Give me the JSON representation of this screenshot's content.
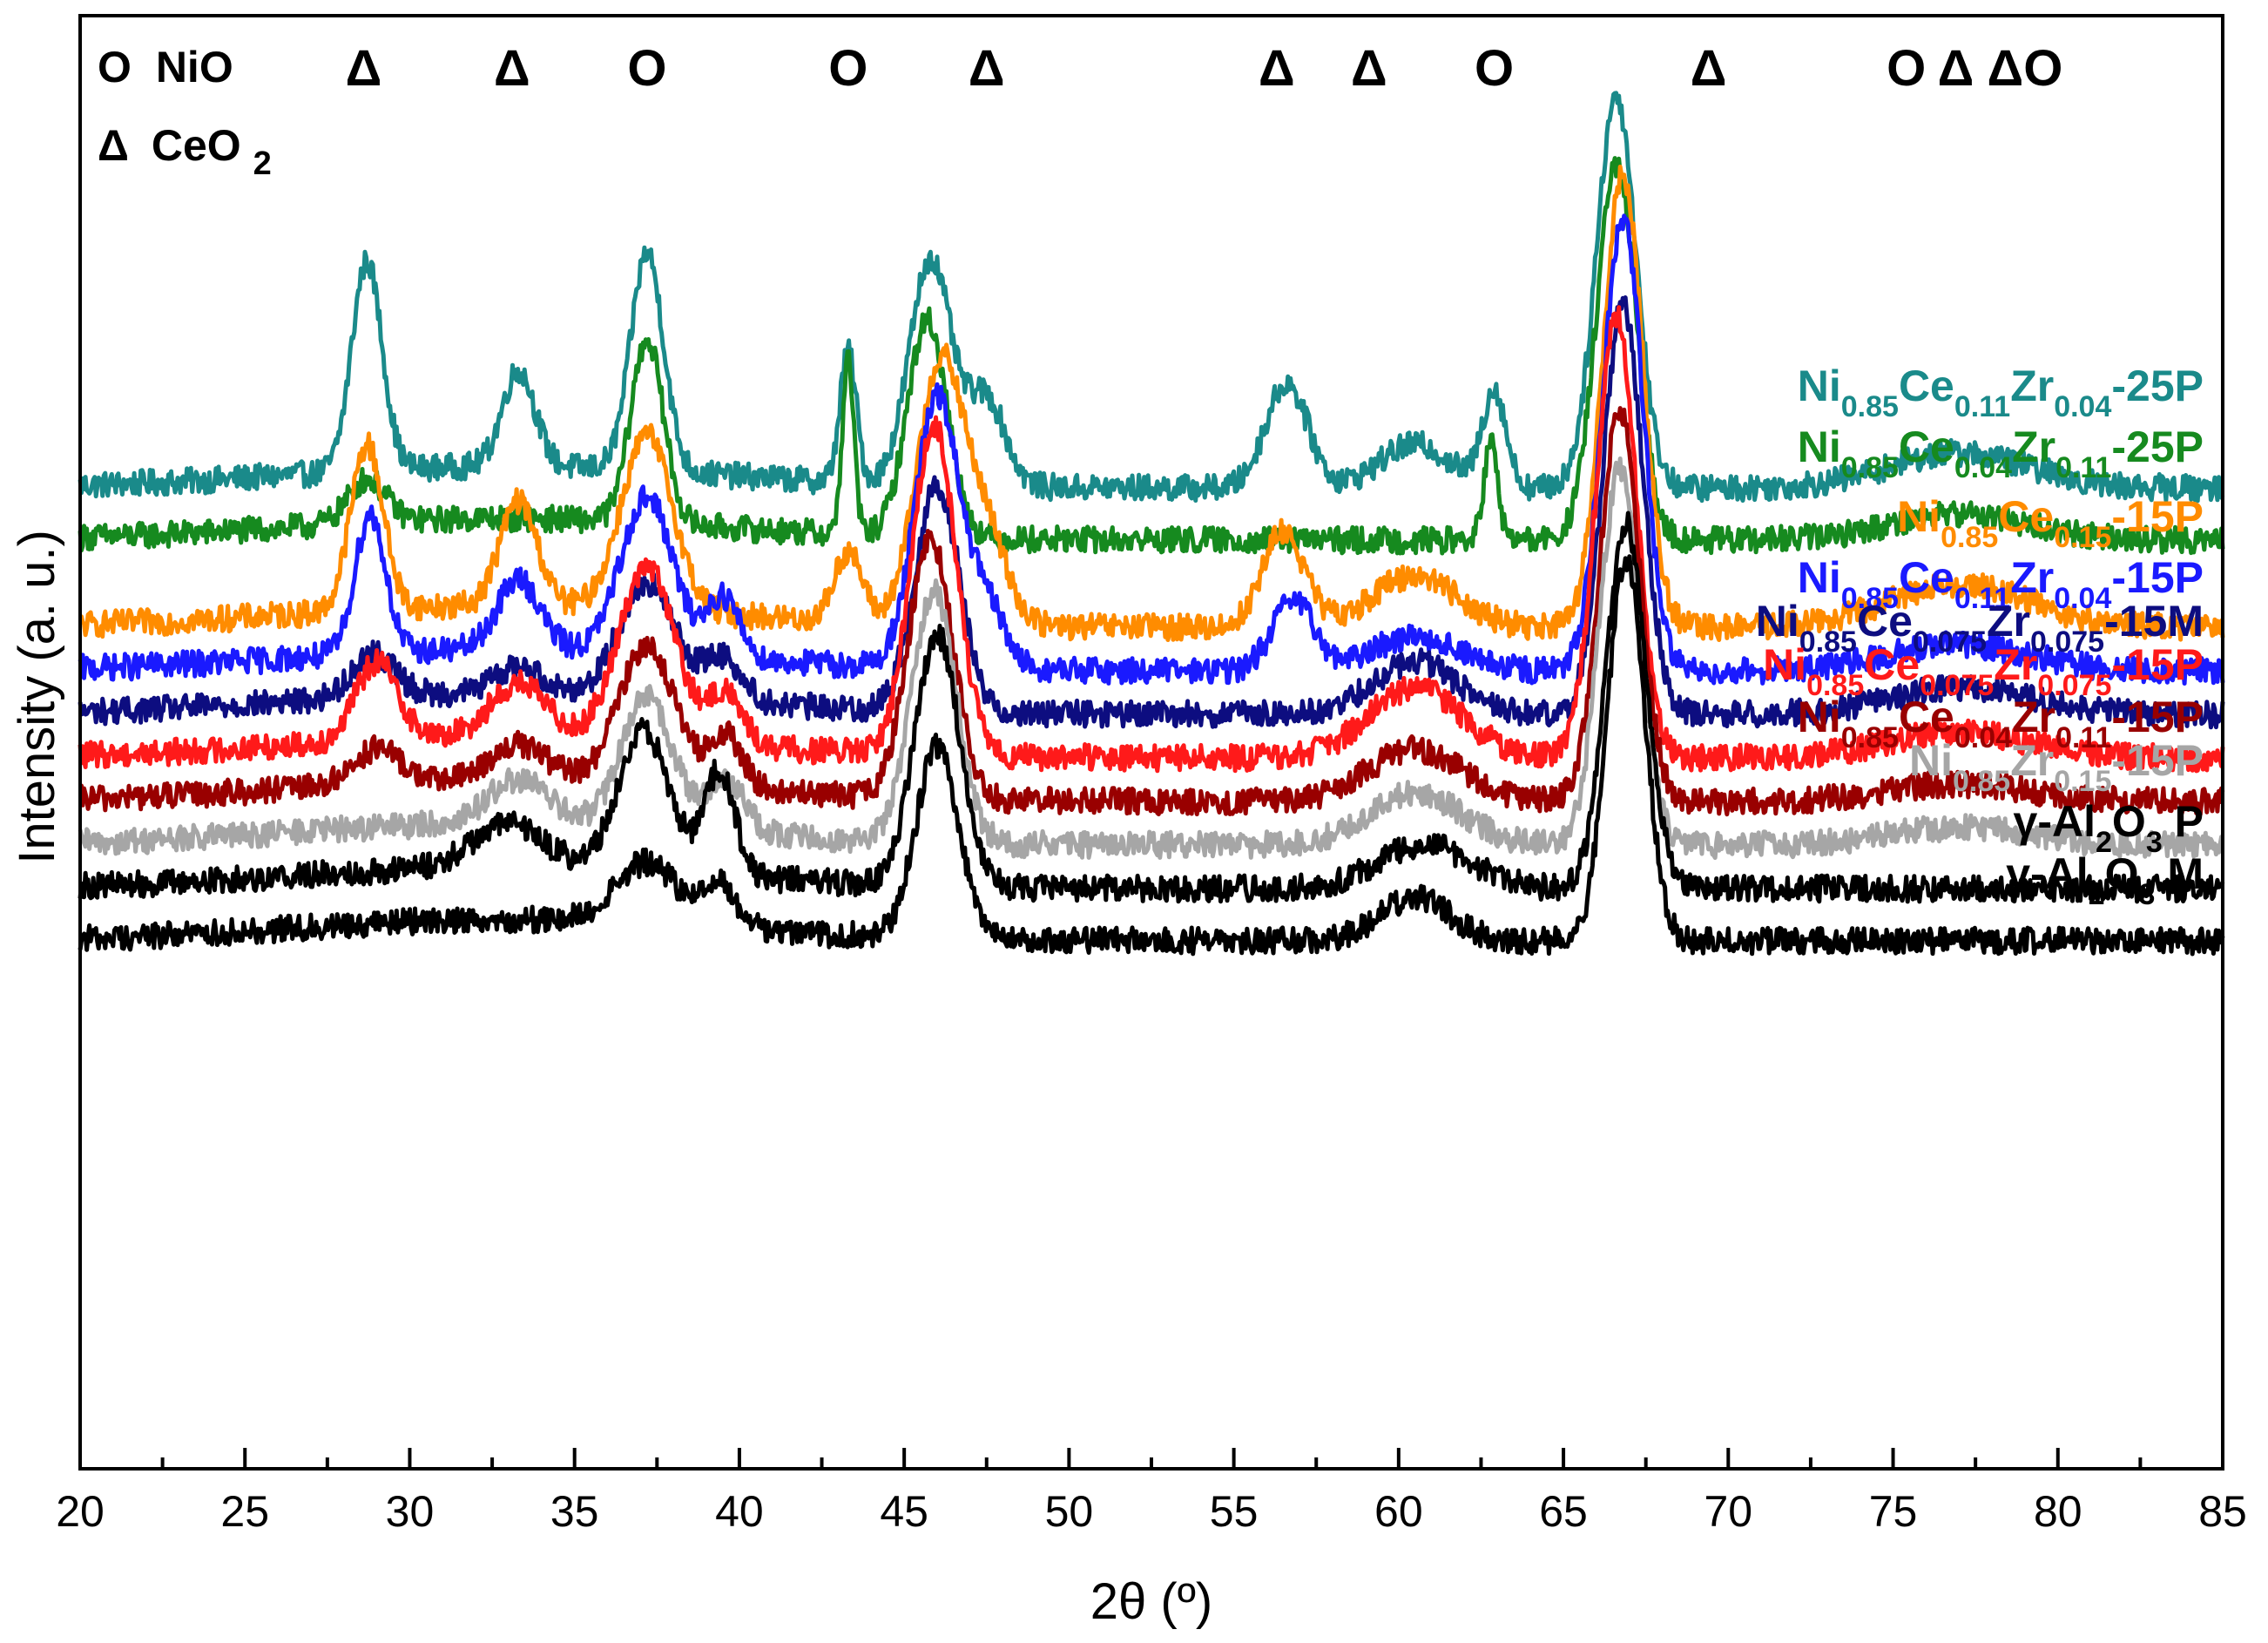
{
  "chart_data": {
    "type": "line",
    "title": "",
    "xlabel": "2θ (º)",
    "ylabel": "Intensity (a. u.)",
    "xlim": [
      20,
      85
    ],
    "x_ticks": [
      20,
      25,
      30,
      35,
      40,
      45,
      50,
      55,
      60,
      65,
      70,
      75,
      80,
      85
    ],
    "x_tick_labels": [
      "20",
      "25",
      "30",
      "35",
      "40",
      "45",
      "50",
      "55",
      "60",
      "65",
      "70",
      "75",
      "80",
      "85"
    ],
    "y_ticks_shown": false,
    "legend": {
      "placement": "top-left",
      "entries": [
        {
          "symbol": "O",
          "label": "NiO"
        },
        {
          "symbol": "Δ",
          "label": "CeO",
          "sub": "2"
        }
      ]
    },
    "peak_markers": [
      {
        "x": 28.6,
        "symbol": "Δ"
      },
      {
        "x": 33.1,
        "symbol": "Δ"
      },
      {
        "x": 37.2,
        "symbol": "O"
      },
      {
        "x": 43.3,
        "symbol": "O"
      },
      {
        "x": 47.5,
        "symbol": "Δ"
      },
      {
        "x": 56.3,
        "symbol": "Δ"
      },
      {
        "x": 59.1,
        "symbol": "Δ"
      },
      {
        "x": 62.9,
        "symbol": "O"
      },
      {
        "x": 69.4,
        "symbol": "Δ"
      },
      {
        "x": 75.4,
        "symbol": "O"
      },
      {
        "x": 76.9,
        "symbol": "Δ"
      },
      {
        "x": 79.0,
        "symbol": "ΔO"
      }
    ],
    "series": [
      {
        "name": "Ni0.85Ce0.11Zr0.04-25P",
        "label_parts": [
          [
            "Ni",
            ""
          ],
          [
            "0.85",
            "sub"
          ],
          [
            "Ce",
            ""
          ],
          [
            "0.11",
            "sub"
          ],
          [
            "Zr",
            ""
          ],
          [
            "0.04",
            "sub"
          ],
          [
            "-25P",
            ""
          ]
        ],
        "color": "#1a8a8a",
        "offset": 2.0,
        "peaks": [
          [
            28.7,
            2.4,
            0.65
          ],
          [
            33.3,
            1.1,
            0.7
          ],
          [
            37.2,
            2.5,
            0.7
          ],
          [
            43.3,
            1.5,
            0.35
          ],
          [
            45.8,
            2.6,
            0.9
          ],
          [
            47.5,
            1.0,
            0.8
          ],
          [
            56.6,
            1.2,
            0.9
          ],
          [
            60.5,
            0.5,
            1.5
          ],
          [
            62.9,
            1.1,
            0.5
          ],
          [
            66.6,
            4.5,
            0.85
          ],
          [
            77,
            0.4,
            3
          ]
        ]
      },
      {
        "name": "Ni0.85Ce0.04Zr0.11-25P",
        "label_parts": [
          [
            "Ni",
            ""
          ],
          [
            "0.85",
            "sub"
          ],
          [
            "Ce",
            ""
          ],
          [
            "0.04",
            "sub"
          ],
          [
            "Zr",
            ""
          ],
          [
            "0.11",
            "sub"
          ],
          [
            "-25P",
            ""
          ]
        ],
        "color": "#168a1f",
        "offset": 1.4,
        "peaks": [
          [
            28.7,
            0.5,
            0.8
          ],
          [
            37.2,
            2.1,
            0.7
          ],
          [
            43.3,
            2.0,
            0.25
          ],
          [
            45.7,
            2.5,
            0.85
          ],
          [
            62.8,
            1.1,
            0.3
          ],
          [
            66.6,
            4.3,
            0.85
          ],
          [
            77,
            0.3,
            3
          ]
        ]
      },
      {
        "name": "Ni0.85Ce0.15-15P",
        "label_parts": [
          [
            "Ni",
            ""
          ],
          [
            "0.85",
            "sub"
          ],
          [
            "Ce",
            ""
          ],
          [
            "0.15",
            "sub"
          ],
          [
            "-15P",
            ""
          ]
        ],
        "color": "#ff8c00",
        "offset": 0.4,
        "peaks": [
          [
            28.7,
            1.9,
            0.7
          ],
          [
            33.3,
            1.2,
            0.8
          ],
          [
            37.2,
            2.0,
            1.1
          ],
          [
            43.3,
            0.8,
            0.6
          ],
          [
            46.1,
            3.0,
            1.0
          ],
          [
            47.5,
            1.0,
            0.9
          ],
          [
            56.5,
            1.1,
            0.9
          ],
          [
            60.5,
            0.6,
            1.8
          ],
          [
            66.8,
            5.2,
            0.85
          ],
          [
            77,
            0.5,
            3
          ]
        ]
      },
      {
        "name": "Ni0.85Ce0.11Zr0.04-15P",
        "label_parts": [
          [
            "Ni",
            ""
          ],
          [
            "0.85",
            "sub"
          ],
          [
            "Ce",
            ""
          ],
          [
            "0.11",
            "sub"
          ],
          [
            "Zr",
            ""
          ],
          [
            "0.04",
            "sub"
          ],
          [
            "-15P",
            ""
          ]
        ],
        "color": "#1a1aff",
        "offset": -0.1,
        "peaks": [
          [
            28.8,
            1.6,
            0.65
          ],
          [
            33.3,
            0.8,
            0.9
          ],
          [
            37.2,
            1.8,
            1.1
          ],
          [
            39.5,
            0.7,
            0.7
          ],
          [
            46.0,
            3.1,
            0.95
          ],
          [
            47.5,
            0.7,
            0.8
          ],
          [
            56.8,
            0.8,
            0.9
          ],
          [
            60.5,
            0.4,
            1.8
          ],
          [
            66.8,
            5.2,
            0.85
          ],
          [
            77,
            0.3,
            3
          ]
        ]
      },
      {
        "name": "Ni0.85Ce0.075Zr0.075-15M",
        "label_parts": [
          [
            "Ni",
            ""
          ],
          [
            "0.85",
            "sub"
          ],
          [
            "Ce",
            ""
          ],
          [
            "0.075",
            "sub"
          ],
          [
            "Zr",
            ""
          ],
          [
            "0.075",
            "sub"
          ],
          [
            "-15M",
            ""
          ]
        ],
        "color": "#0d0d80",
        "offset": -0.6,
        "peaks": [
          [
            28.9,
            0.5,
            0.9
          ],
          [
            33.3,
            0.3,
            1.0
          ],
          [
            37.2,
            1.3,
            1.2
          ],
          [
            39.5,
            0.5,
            0.8
          ],
          [
            46.0,
            2.6,
            0.95
          ],
          [
            60.5,
            0.6,
            1.8
          ],
          [
            66.8,
            4.7,
            0.85
          ],
          [
            77,
            0.3,
            3
          ]
        ]
      },
      {
        "name": "Ni0.85Ce0.075Zr0.075-15P",
        "label_parts": [
          [
            "Ni",
            ""
          ],
          [
            "0.85",
            "sub"
          ],
          [
            "Ce",
            ""
          ],
          [
            "0.075",
            "sub"
          ],
          [
            "Zr",
            ""
          ],
          [
            "0.075",
            "sub"
          ],
          [
            "-15P",
            ""
          ]
        ],
        "color": "#ff1a1a",
        "offset": -1.1,
        "peaks": [
          [
            29.0,
            0.9,
            0.9
          ],
          [
            33.3,
            0.6,
            1.2
          ],
          [
            37.2,
            2.0,
            1.2
          ],
          [
            39.6,
            0.6,
            0.7
          ],
          [
            45.9,
            3.8,
            0.95
          ],
          [
            60.5,
            0.8,
            2.0
          ],
          [
            66.6,
            5.1,
            0.85
          ],
          [
            77,
            0.3,
            3
          ]
        ]
      },
      {
        "name": "Ni0.85Ce0.04Zr0.11-15P",
        "label_parts": [
          [
            "Ni",
            ""
          ],
          [
            "0.85",
            "sub"
          ],
          [
            "Ce",
            ""
          ],
          [
            "0.04",
            "sub"
          ],
          [
            "Zr",
            ""
          ],
          [
            "0.11",
            "sub"
          ],
          [
            "-15P",
            ""
          ]
        ],
        "color": "#990000",
        "offset": -1.6,
        "peaks": [
          [
            29.0,
            0.4,
            1.0
          ],
          [
            33.3,
            0.4,
            1.2
          ],
          [
            37.2,
            1.6,
            1.2
          ],
          [
            39.6,
            0.6,
            0.7
          ],
          [
            45.8,
            3.0,
            0.95
          ],
          [
            60.5,
            0.6,
            2.0
          ],
          [
            66.7,
            4.5,
            0.85
          ],
          [
            77,
            0.2,
            3
          ]
        ]
      },
      {
        "name": "Ni0.85Zr0.15-15P",
        "label_parts": [
          [
            "Ni",
            ""
          ],
          [
            "0.85",
            "sub"
          ],
          [
            "Zr",
            ""
          ],
          [
            "0.15",
            "sub"
          ],
          [
            "-15P",
            ""
          ]
        ],
        "color": "#a6a6a6",
        "offset": -2.1,
        "peaks": [
          [
            33.3,
            0.5,
            1.3
          ],
          [
            37.2,
            1.5,
            1.1
          ],
          [
            39.6,
            0.6,
            0.8
          ],
          [
            45.9,
            2.9,
            0.95
          ],
          [
            60.5,
            0.6,
            2.0
          ],
          [
            66.7,
            4.3,
            0.85
          ],
          [
            77,
            0.2,
            3
          ]
        ]
      },
      {
        "name": "γ-Al2O3 P",
        "label_parts": [
          [
            "γ-Al",
            ""
          ],
          [
            "2",
            "sub"
          ],
          [
            "O",
            ""
          ],
          [
            "3",
            "sub"
          ],
          [
            " P",
            ""
          ]
        ],
        "color": "#000000",
        "offset": -2.6,
        "peaks": [
          [
            33.0,
            0.5,
            1.5
          ],
          [
            37.1,
            1.6,
            1.1
          ],
          [
            39.4,
            1.2,
            0.65
          ],
          [
            46.0,
            2.9,
            0.95
          ],
          [
            60.8,
            0.5,
            2.0
          ],
          [
            66.9,
            4.2,
            0.85
          ]
        ]
      },
      {
        "name": "γ-Al2O3 M",
        "label_parts": [
          [
            "γ-Al",
            ""
          ],
          [
            "2",
            "sub"
          ],
          [
            "O",
            ""
          ],
          [
            "3",
            "sub"
          ],
          [
            " M",
            ""
          ]
        ],
        "color": "#000000",
        "offset": -3.2,
        "peaks": [
          [
            37.2,
            0.7,
            1.3
          ],
          [
            39.4,
            0.5,
            0.7
          ],
          [
            46.0,
            2.2,
            0.9
          ],
          [
            60.5,
            0.5,
            1.5
          ],
          [
            66.9,
            4.4,
            0.8
          ]
        ]
      }
    ]
  }
}
